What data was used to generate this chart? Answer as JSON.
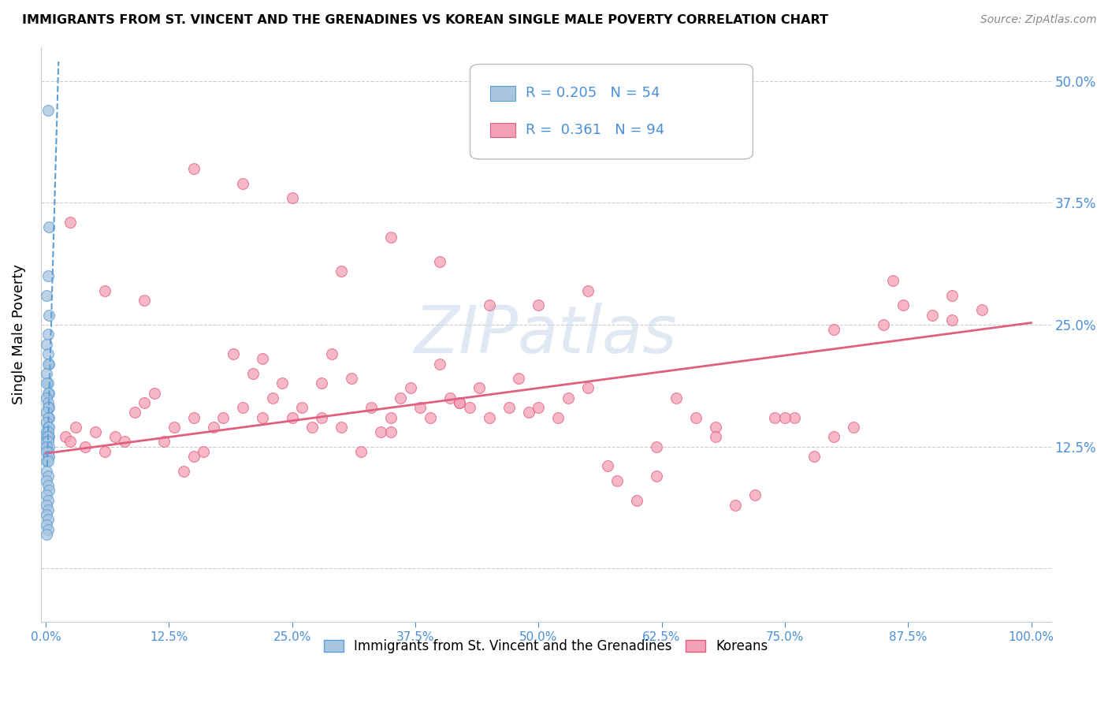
{
  "title": "IMMIGRANTS FROM ST. VINCENT AND THE GRENADINES VS KOREAN SINGLE MALE POVERTY CORRELATION CHART",
  "source": "Source: ZipAtlas.com",
  "ylabel": "Single Male Poverty",
  "R_blue": 0.205,
  "N_blue": 54,
  "R_pink": 0.361,
  "N_pink": 94,
  "blue_color": "#a8c4e0",
  "pink_color": "#f4a0b8",
  "blue_line_color": "#5a9fd4",
  "pink_line_color": "#e06080",
  "axis_color": "#4a90d9",
  "grid_color": "#cccccc",
  "blue_x": [
    0.002,
    0.003,
    0.002,
    0.001,
    0.003,
    0.002,
    0.001,
    0.002,
    0.003,
    0.002,
    0.001,
    0.002,
    0.001,
    0.003,
    0.002,
    0.001,
    0.002,
    0.003,
    0.002,
    0.001,
    0.003,
    0.002,
    0.001,
    0.002,
    0.003,
    0.001,
    0.002,
    0.001,
    0.003,
    0.002,
    0.001,
    0.002,
    0.003,
    0.001,
    0.002,
    0.001,
    0.002,
    0.003,
    0.001,
    0.002,
    0.001,
    0.002,
    0.001,
    0.002,
    0.003,
    0.001,
    0.002,
    0.001,
    0.002,
    0.001,
    0.002,
    0.001,
    0.002,
    0.001
  ],
  "blue_y": [
    0.47,
    0.35,
    0.3,
    0.28,
    0.26,
    0.24,
    0.23,
    0.22,
    0.21,
    0.21,
    0.2,
    0.19,
    0.19,
    0.18,
    0.18,
    0.175,
    0.17,
    0.165,
    0.165,
    0.16,
    0.155,
    0.155,
    0.15,
    0.145,
    0.145,
    0.14,
    0.14,
    0.135,
    0.135,
    0.135,
    0.13,
    0.13,
    0.125,
    0.125,
    0.12,
    0.12,
    0.115,
    0.115,
    0.11,
    0.11,
    0.1,
    0.095,
    0.09,
    0.085,
    0.08,
    0.075,
    0.07,
    0.065,
    0.06,
    0.055,
    0.05,
    0.045,
    0.04,
    0.035
  ],
  "pink_x": [
    0.02,
    0.025,
    0.03,
    0.04,
    0.05,
    0.06,
    0.07,
    0.08,
    0.09,
    0.1,
    0.11,
    0.12,
    0.13,
    0.14,
    0.15,
    0.16,
    0.17,
    0.18,
    0.19,
    0.2,
    0.21,
    0.22,
    0.23,
    0.24,
    0.25,
    0.26,
    0.27,
    0.28,
    0.29,
    0.3,
    0.31,
    0.32,
    0.33,
    0.34,
    0.35,
    0.36,
    0.37,
    0.38,
    0.39,
    0.4,
    0.41,
    0.42,
    0.43,
    0.44,
    0.45,
    0.47,
    0.48,
    0.49,
    0.5,
    0.52,
    0.53,
    0.55,
    0.57,
    0.58,
    0.6,
    0.62,
    0.64,
    0.66,
    0.68,
    0.7,
    0.72,
    0.74,
    0.76,
    0.78,
    0.8,
    0.82,
    0.85,
    0.87,
    0.9,
    0.92,
    0.95,
    0.025,
    0.06,
    0.1,
    0.15,
    0.2,
    0.25,
    0.3,
    0.35,
    0.4,
    0.45,
    0.5,
    0.55,
    0.62,
    0.68,
    0.75,
    0.8,
    0.86,
    0.92,
    0.15,
    0.22,
    0.28,
    0.35,
    0.42
  ],
  "pink_y": [
    0.135,
    0.13,
    0.145,
    0.125,
    0.14,
    0.12,
    0.135,
    0.13,
    0.16,
    0.17,
    0.18,
    0.13,
    0.145,
    0.1,
    0.115,
    0.12,
    0.145,
    0.155,
    0.22,
    0.165,
    0.2,
    0.215,
    0.175,
    0.19,
    0.155,
    0.165,
    0.145,
    0.155,
    0.22,
    0.145,
    0.195,
    0.12,
    0.165,
    0.14,
    0.155,
    0.175,
    0.185,
    0.165,
    0.155,
    0.21,
    0.175,
    0.17,
    0.165,
    0.185,
    0.155,
    0.165,
    0.195,
    0.16,
    0.165,
    0.155,
    0.175,
    0.185,
    0.105,
    0.09,
    0.07,
    0.095,
    0.175,
    0.155,
    0.145,
    0.065,
    0.075,
    0.155,
    0.155,
    0.115,
    0.135,
    0.145,
    0.25,
    0.27,
    0.26,
    0.255,
    0.265,
    0.355,
    0.285,
    0.275,
    0.41,
    0.395,
    0.38,
    0.305,
    0.34,
    0.315,
    0.27,
    0.27,
    0.285,
    0.125,
    0.135,
    0.155,
    0.245,
    0.295,
    0.28,
    0.155,
    0.155,
    0.19,
    0.14,
    0.17
  ],
  "pink_trend_x0": 0.0,
  "pink_trend_x1": 1.0,
  "pink_trend_y0": 0.118,
  "pink_trend_y1": 0.252,
  "blue_trend_x0": 0.0015,
  "blue_trend_x1": 0.013,
  "blue_trend_y0": 0.105,
  "blue_trend_y1": 0.52,
  "xlim_min": -0.005,
  "xlim_max": 1.02,
  "ylim_min": -0.055,
  "ylim_max": 0.535,
  "yticks": [
    0.0,
    0.125,
    0.25,
    0.375,
    0.5
  ],
  "yticklabels_right": [
    "",
    "12.5%",
    "25.0%",
    "37.5%",
    "50.0%"
  ],
  "xticks": [
    0.0,
    0.125,
    0.25,
    0.375,
    0.5,
    0.625,
    0.75,
    0.875,
    1.0
  ],
  "xticklabels": [
    "0.0%",
    "12.5%",
    "25.0%",
    "37.5%",
    "50.0%",
    "62.5%",
    "75.0%",
    "87.5%",
    "100.0%"
  ],
  "legend_label_blue": "Immigrants from St. Vincent and the Grenadines",
  "legend_label_pink": "Koreans",
  "watermark_text": "ZIPatlas",
  "marker_size": 100
}
